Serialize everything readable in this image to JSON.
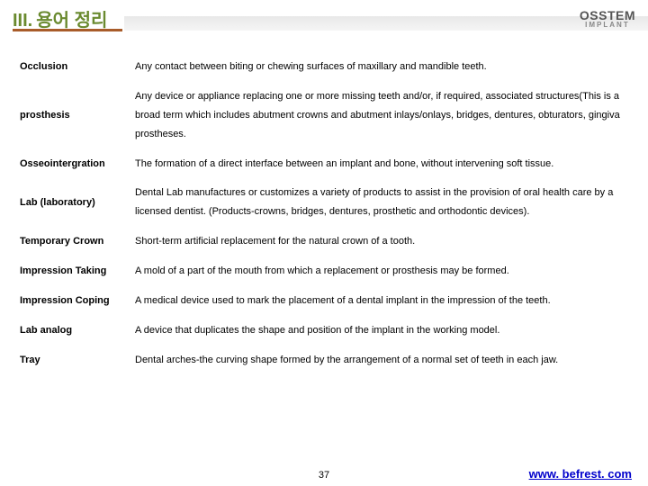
{
  "header": {
    "roman": "III.",
    "title": "용어 정리",
    "logo_main": "OSSTEM",
    "logo_sub": "IMPLANT"
  },
  "definitions": [
    {
      "term": "Occlusion",
      "desc": "Any contact between biting or chewing surfaces of maxillary and mandible teeth."
    },
    {
      "term": "prosthesis",
      "desc": "Any device or appliance replacing one or more missing teeth and/or, if required, associated structures(This is a broad term which includes abutment crowns and abutment inlays/onlays, bridges, dentures, obturators, gingiva prostheses."
    },
    {
      "term": "Osseointergration",
      "desc": "The formation of a direct interface between an implant and bone, without intervening soft tissue."
    },
    {
      "term": "Lab (laboratory)",
      "desc": "Dental Lab manufactures or customizes a variety of products to assist in the provision of oral health care by a licensed dentist. (Products-crowns, bridges, dentures, prosthetic and orthodontic devices)."
    },
    {
      "term": "Temporary Crown",
      "desc": "Short-term artificial replacement for the natural crown of a tooth."
    },
    {
      "term": "Impression Taking",
      "desc": "A mold of a part of the mouth from which a replacement or prosthesis may be formed."
    },
    {
      "term": "Impression Coping",
      "desc": "A medical device used to mark the placement of a dental implant in the impression of the teeth."
    },
    {
      "term": "Lab analog",
      "desc": "A device that duplicates the shape and position of the implant in the working model."
    },
    {
      "term": "Tray",
      "desc": "Dental arches-the curving shape formed by the arrangement of a normal set of teeth in each jaw."
    }
  ],
  "footer": {
    "page": "37",
    "link": "www. befrest. com"
  },
  "colors": {
    "title": "#6a8a2f",
    "underline": "#a85c2a",
    "link": "#0000cc"
  }
}
